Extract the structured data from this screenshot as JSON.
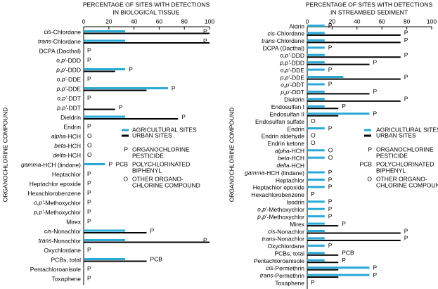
{
  "chart_data": [
    {
      "type": "bar",
      "orientation": "horizontal",
      "title": [
        "PERCENTAGE OF SITES WITH DETECTIONS",
        "IN BIOLOGICAL TISSUE"
      ],
      "y_label": "ORGANOCHLORINE COMPOUND",
      "categories": [
        "cis-Chlordane",
        "trans-Chlordane",
        "DCPA (Dacthal)",
        "o,p'-DDD",
        "p,p'-DDD",
        "o,p'-DDE",
        "p,p'-DDE",
        "o,p'-DDT",
        "p,p'-DDT",
        "Dieldrin",
        "Endrin",
        "alpha-HCH",
        "beta-HCH",
        "delta-HCH",
        "gamma-HCH (lindane)",
        "Heptachlor",
        "Heptachlor epoxide",
        "Hexachlorobenzene",
        "o,p'-Methoxychlor",
        "p,p'-Methoxychlor",
        "Mirex",
        "cis-Nonachlor",
        "trans-Nonachlor",
        "Oxychlordane",
        "PCBs, total",
        "Pentachloroanisole",
        "Toxaphene"
      ],
      "series": [
        {
          "name": "AGRICULTURAL SITES",
          "color": "#29a9d6",
          "values": [
            33,
            33,
            0,
            0,
            33,
            0,
            67,
            0,
            0,
            33,
            0,
            0,
            0,
            0,
            17,
            0,
            0,
            0,
            0,
            0,
            0,
            33,
            33,
            0,
            33,
            0,
            0
          ]
        },
        {
          "name": "URBAN SITES",
          "color": "#000000",
          "values": [
            100,
            100,
            0,
            0,
            25,
            0,
            50,
            0,
            25,
            75,
            0,
            0,
            0,
            0,
            0,
            0,
            0,
            0,
            0,
            0,
            0,
            50,
            100,
            0,
            50,
            0,
            0
          ]
        }
      ],
      "value_labels": [
        "P",
        "P",
        "P",
        "P",
        "P",
        "P",
        "P",
        "P",
        "P",
        "P",
        "P",
        "O",
        "O",
        "O",
        "P",
        "P",
        "P",
        "P",
        "P",
        "P",
        "P",
        "P",
        "P",
        "P",
        "PCB",
        "P",
        "P"
      ],
      "xlim": [
        0,
        100
      ],
      "xticks": [
        0,
        20,
        40,
        60,
        80,
        100
      ],
      "legend_symbols": [
        {
          "symbol": "P",
          "label": [
            "ORGANOCHLORINE",
            "PESTICIDE"
          ]
        },
        {
          "symbol": "PCB",
          "label": [
            "POLYCHLORINATED",
            "BIPHENYL"
          ]
        },
        {
          "symbol": "O",
          "label": [
            "OTHER ORGANO-",
            "CHLORINE COMPOUND"
          ]
        }
      ]
    },
    {
      "type": "bar",
      "orientation": "horizontal",
      "title": [
        "PERCENTAGE OF SITES WITH DETECTIONS",
        "IN STREAMBED SEDIMENT"
      ],
      "y_label": "ORGANOCHLORINE COMPOUND",
      "categories": [
        "Aldrin",
        "cis-Chlordane",
        "trans-Chlordane",
        "DCPA (Dacthal)",
        "o,p'-DDD",
        "p,p'-DDD",
        "o,p'-DDE",
        "p,p'-DDE",
        "o,p'-DDT",
        "p,p'-DDT",
        "Dieldrin",
        "Endosulfan I",
        "Endosulfan II",
        "Endosulfan sulfate",
        "Endrin",
        "Endrin aldehyde",
        "Endrin ketone",
        "alpha-HCH",
        "beta-HCH",
        "delta-HCH",
        "gamma-HCH (lindane)",
        "Heptachlor",
        "Heptachlor epoxide",
        "Hexachlorobenzene",
        "Isodrin",
        "o,p'-Methoxychlor",
        "p,p'-Methoxychlor",
        "Mirex",
        "cis-Nonachlor",
        "trans-Nonachlor",
        "Oxychlordane",
        "PCBs, total",
        "Pentachloroanisole",
        "cis-Permethrin",
        "trans-Permethrin",
        "Toxaphene"
      ],
      "series": [
        {
          "name": "AGRICULTURAL SITES",
          "color": "#29a9d6",
          "values": [
            14,
            14,
            14,
            14,
            14,
            14,
            14,
            29,
            14,
            14,
            14,
            14,
            50,
            0,
            14,
            0,
            0,
            14,
            14,
            0,
            14,
            14,
            14,
            0,
            14,
            14,
            14,
            14,
            14,
            14,
            14,
            14,
            14,
            50,
            50,
            0
          ]
        },
        {
          "name": "URBAN SITES",
          "color": "#000000",
          "values": [
            0,
            75,
            75,
            0,
            75,
            50,
            0,
            75,
            0,
            50,
            75,
            25,
            25,
            0,
            0,
            0,
            0,
            0,
            0,
            0,
            0,
            0,
            0,
            0,
            0,
            0,
            0,
            25,
            75,
            75,
            0,
            25,
            25,
            25,
            25,
            0
          ]
        }
      ],
      "value_labels": [
        "P",
        "P",
        "P",
        "P",
        "P",
        "P",
        "P",
        "P",
        "P",
        "P",
        "P",
        "P",
        "P",
        "O",
        "P",
        "O",
        "O",
        "O",
        "O",
        null,
        "P",
        "P",
        "P",
        "P",
        "P",
        "P",
        "P",
        "P",
        "P",
        "P",
        "P",
        "PCB",
        "P",
        "P",
        "P",
        "P"
      ],
      "xlim": [
        0,
        100
      ],
      "xticks": [
        0,
        20,
        40,
        60,
        80,
        100
      ],
      "legend_symbols": [
        {
          "symbol": "P",
          "label": [
            "ORGANOCHLORINE",
            "PESTICIDE"
          ]
        },
        {
          "symbol": "PCB",
          "label": [
            "POLYCHLORINATED",
            "BIPHENYL"
          ]
        },
        {
          "symbol": "O",
          "label": [
            "OTHER ORGANO-",
            "CHLORINE COMPOUND"
          ]
        }
      ]
    }
  ]
}
